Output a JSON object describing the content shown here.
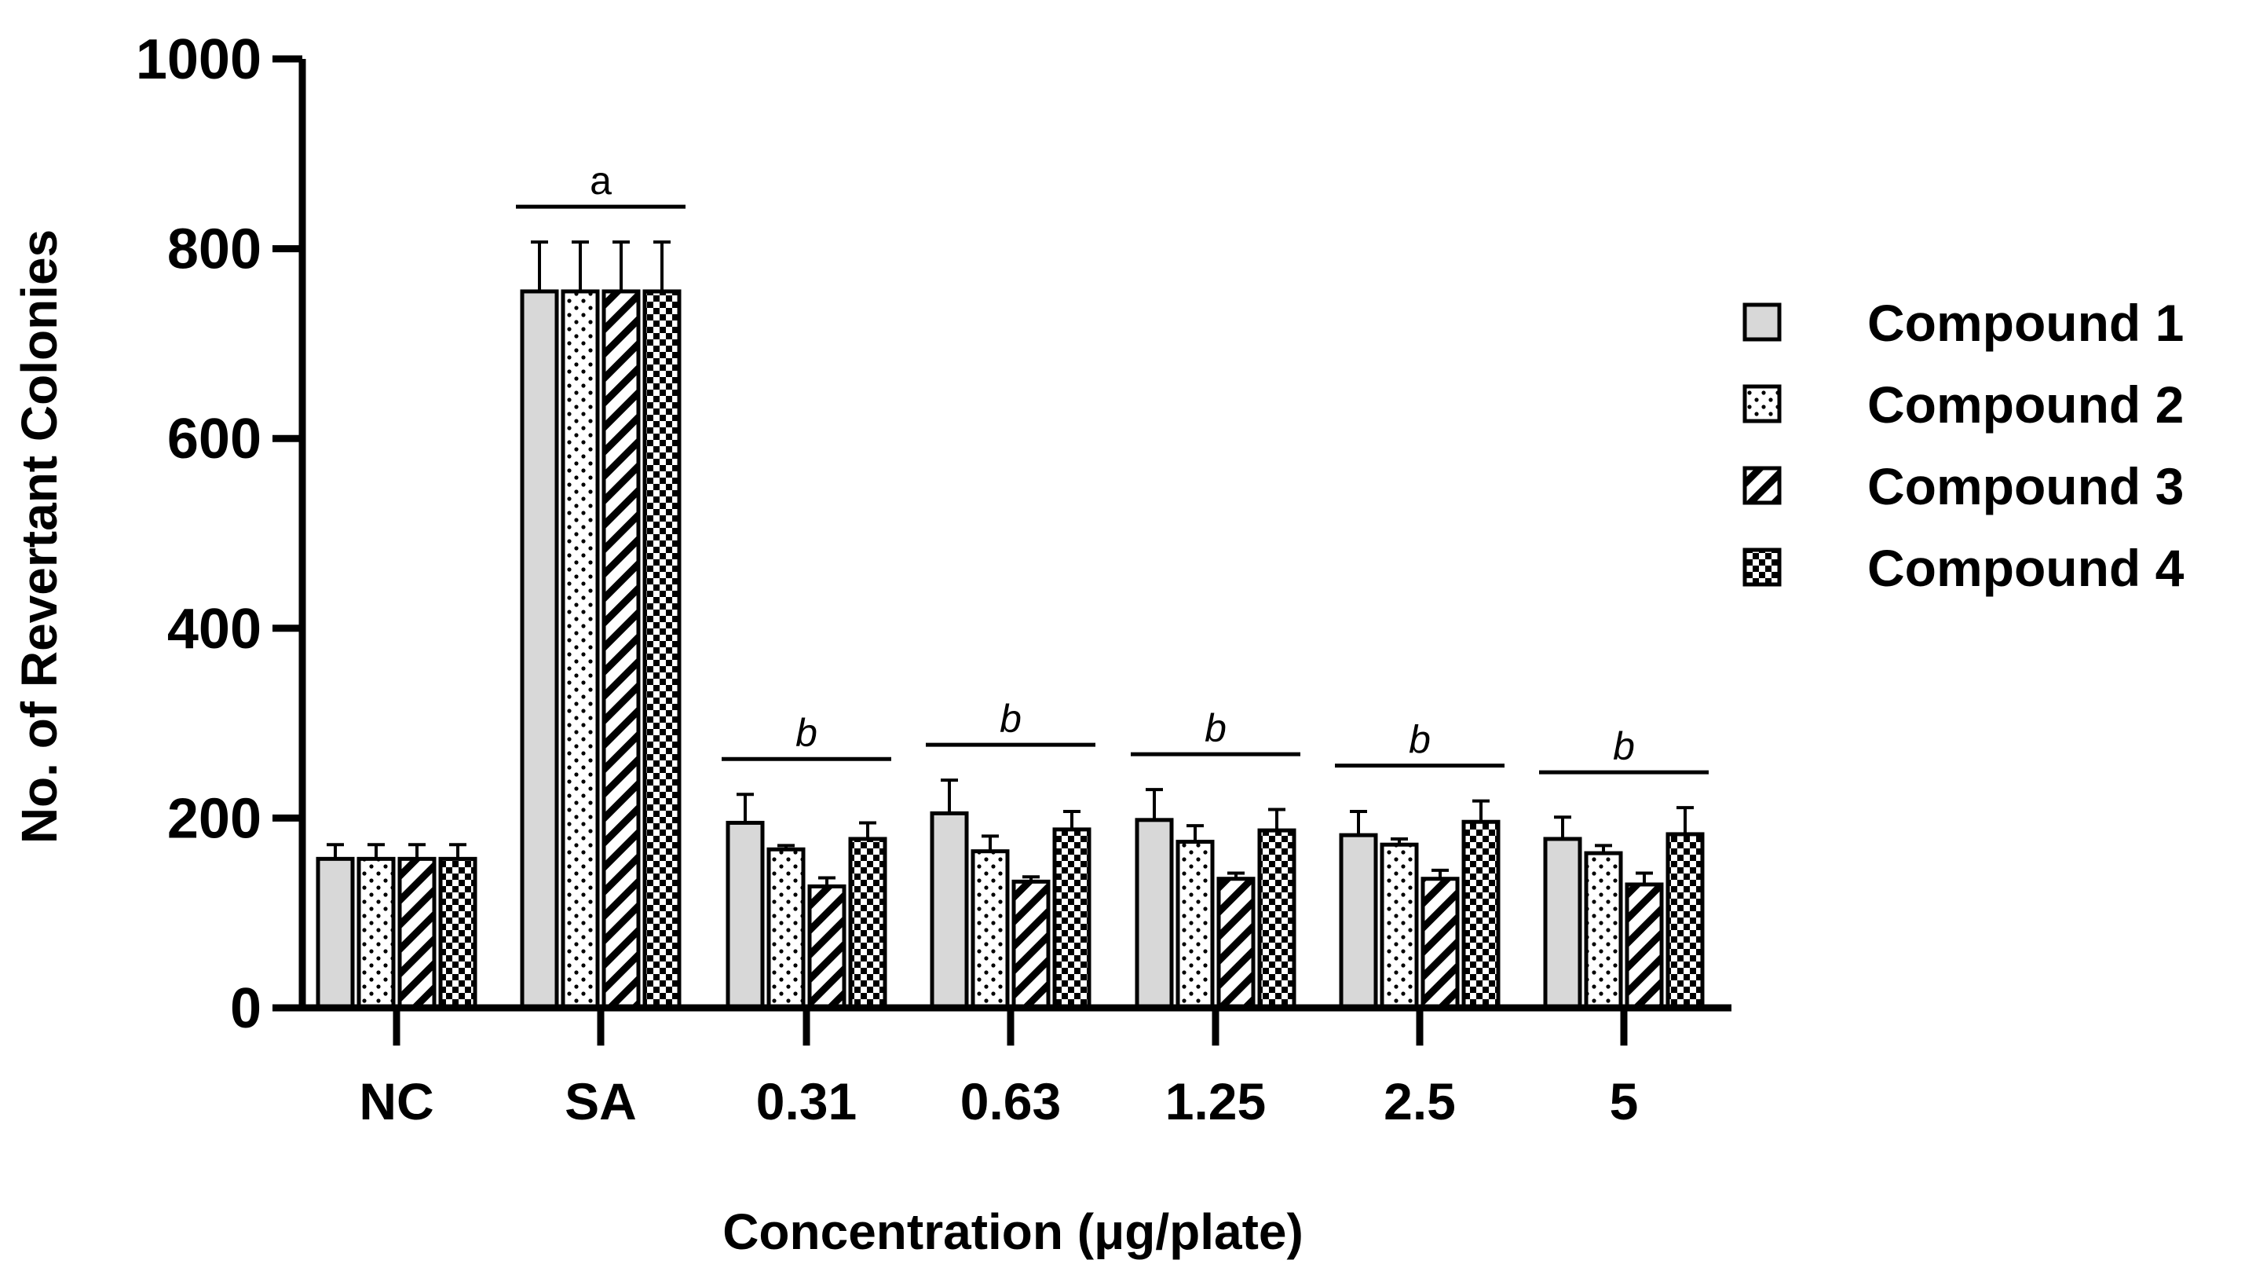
{
  "chart_data": {
    "type": "bar",
    "title": "",
    "xlabel": "Concentration (μg/plate)",
    "ylabel": "No. of Revertant Colonies",
    "ylim": [
      0,
      1000
    ],
    "yticks": [
      0,
      200,
      400,
      600,
      800,
      1000
    ],
    "categories": [
      "NC",
      "SA",
      "0.31",
      "0.63",
      "1.25",
      "2.5",
      "5"
    ],
    "series": [
      {
        "name": "Compound 1",
        "pattern": "solid-gray",
        "values": [
          157,
          755,
          195,
          205,
          198,
          182,
          178
        ],
        "errors": [
          15,
          52,
          30,
          35,
          32,
          25,
          23
        ]
      },
      {
        "name": "Compound 2",
        "pattern": "dots",
        "values": [
          157,
          755,
          167,
          165,
          175,
          172,
          163
        ],
        "errors": [
          15,
          52,
          4,
          16,
          17,
          6,
          8
        ]
      },
      {
        "name": "Compound 3",
        "pattern": "diagonal-stripes",
        "values": [
          157,
          755,
          128,
          133,
          136,
          136,
          130
        ],
        "errors": [
          15,
          52,
          9,
          5,
          6,
          9,
          12
        ]
      },
      {
        "name": "Compound 4",
        "pattern": "checker",
        "values": [
          157,
          755,
          178,
          188,
          187,
          196,
          183
        ],
        "errors": [
          15,
          52,
          17,
          19,
          22,
          22,
          28
        ]
      }
    ],
    "significance": [
      {
        "category": "SA",
        "letter": "a",
        "style": "normal"
      },
      {
        "category": "0.31",
        "letter": "b",
        "style": "italic"
      },
      {
        "category": "0.63",
        "letter": "b",
        "style": "italic"
      },
      {
        "category": "1.25",
        "letter": "b",
        "style": "italic"
      },
      {
        "category": "2.5",
        "letter": "b",
        "style": "italic"
      },
      {
        "category": "5",
        "letter": "b",
        "style": "italic"
      }
    ],
    "legend": {
      "position": "right",
      "entries": [
        "Compound 1",
        "Compound 2",
        "Compound 3",
        "Compound 4"
      ]
    },
    "grid": false
  },
  "colors": {
    "bar_fill_compound1": "#d8d8d8",
    "stroke": "#000000",
    "background": "#ffffff"
  }
}
